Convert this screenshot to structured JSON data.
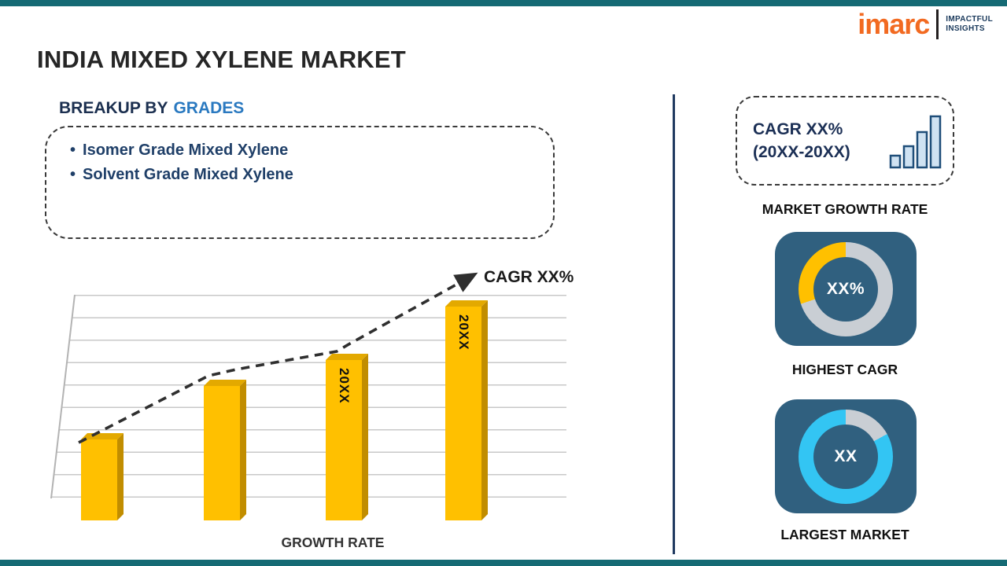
{
  "page": {
    "title": "INDIA MIXED XYLENE MARKET"
  },
  "logo": {
    "brand": "imarc",
    "tagline_line1": "IMPACTFUL",
    "tagline_line2": "INSIGHTS"
  },
  "breakup": {
    "heading_prefix": "BREAKUP BY",
    "heading_highlight": "GRADES",
    "items": [
      "Isomer Grade Mixed Xylene",
      "Solvent Grade Mixed Xylene"
    ]
  },
  "chart_data": {
    "type": "bar",
    "categories": [
      "",
      "",
      "20XX",
      "20XX"
    ],
    "values": [
      38,
      63,
      75,
      100
    ],
    "ylim": [
      0,
      110
    ],
    "title": "",
    "xlabel": "GROWTH RATE",
    "ylabel": "",
    "grid": true,
    "legend": false,
    "trend_label": "CAGR XX%",
    "bar_color": "#FFC000"
  },
  "sidebar": {
    "cagr_card": {
      "line1": "CAGR XX%",
      "line2": "(20XX-20XX)"
    },
    "market_growth_label": "MARKET GROWTH RATE",
    "highest_cagr": {
      "value": "XX%",
      "label": "HIGHEST CAGR",
      "donut": {
        "segments": [
          {
            "color": "#C9CED4",
            "to": 70
          },
          {
            "color": "#FFC000",
            "to": 100
          }
        ]
      }
    },
    "largest_market": {
      "value": "XX",
      "label": "LARGEST MARKET",
      "donut": {
        "segments": [
          {
            "color": "#C9CED4",
            "to": 17
          },
          {
            "color": "#33C5F3",
            "to": 100
          }
        ]
      }
    }
  },
  "colors": {
    "strip": "#156A74",
    "accent_blue": "#2A79C0",
    "navy": "#1C3050",
    "bar": "#FFC000",
    "card_bg": "#30607F",
    "logo_orange": "#F26A21"
  }
}
